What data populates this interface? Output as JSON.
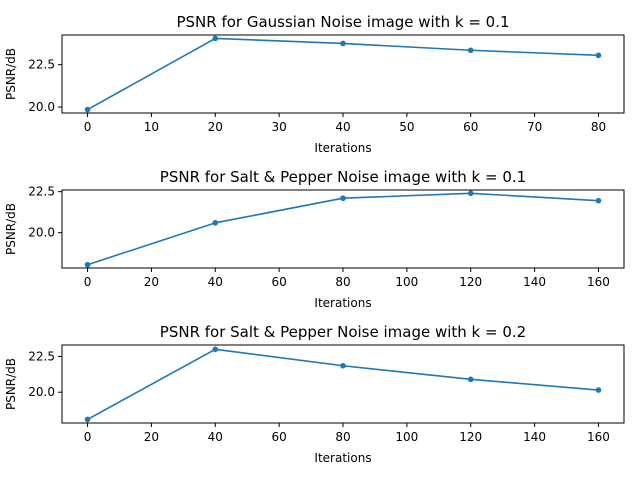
{
  "figure": {
    "line_color": "#1f77b4"
  },
  "chart_data": [
    {
      "type": "line",
      "title": "PSNR for Gaussian Noise image with k = 0.1",
      "xlabel": "Iterations",
      "ylabel": "PSNR/dB",
      "x": [
        0,
        20,
        40,
        60,
        80
      ],
      "series": [
        {
          "values": [
            19.85,
            24.05,
            23.75,
            23.35,
            23.05
          ]
        }
      ],
      "xlim": [
        -4,
        84
      ],
      "ylim": [
        19.65,
        24.25
      ],
      "xticks": [
        0,
        10,
        20,
        30,
        40,
        50,
        60,
        70,
        80
      ],
      "yticks": [
        20.0,
        22.5
      ],
      "xtick_labels": [
        "0",
        "10",
        "20",
        "30",
        "40",
        "50",
        "60",
        "70",
        "80"
      ],
      "ytick_labels": [
        "20.0",
        "22.5"
      ],
      "grid": false,
      "marker": "dot"
    },
    {
      "type": "line",
      "title": "PSNR for Salt & Pepper Noise image with k = 0.1",
      "xlabel": "Iterations",
      "ylabel": "PSNR/dB",
      "x": [
        0,
        40,
        80,
        120,
        160
      ],
      "series": [
        {
          "values": [
            18.05,
            20.6,
            22.1,
            22.4,
            21.95
          ]
        }
      ],
      "xlim": [
        -8,
        168
      ],
      "ylim": [
        17.85,
        22.6
      ],
      "xticks": [
        0,
        20,
        40,
        60,
        80,
        100,
        120,
        140,
        160
      ],
      "yticks": [
        20.0,
        22.5
      ],
      "xtick_labels": [
        "0",
        "20",
        "40",
        "60",
        "80",
        "100",
        "120",
        "140",
        "160"
      ],
      "ytick_labels": [
        "20.0",
        "22.5"
      ],
      "grid": false,
      "marker": "dot"
    },
    {
      "type": "line",
      "title": "PSNR for Salt & Pepper Noise image with k = 0.2",
      "xlabel": "Iterations",
      "ylabel": "PSNR/dB",
      "x": [
        0,
        40,
        80,
        120,
        160
      ],
      "series": [
        {
          "values": [
            18.1,
            23.0,
            21.85,
            20.9,
            20.15
          ]
        }
      ],
      "xlim": [
        -8,
        168
      ],
      "ylim": [
        17.85,
        23.3
      ],
      "xticks": [
        0,
        20,
        40,
        60,
        80,
        100,
        120,
        140,
        160
      ],
      "yticks": [
        20.0,
        22.5
      ],
      "xtick_labels": [
        "0",
        "20",
        "40",
        "60",
        "80",
        "100",
        "120",
        "140",
        "160"
      ],
      "ytick_labels": [
        "20.0",
        "22.5"
      ],
      "grid": false,
      "marker": "dot"
    }
  ]
}
